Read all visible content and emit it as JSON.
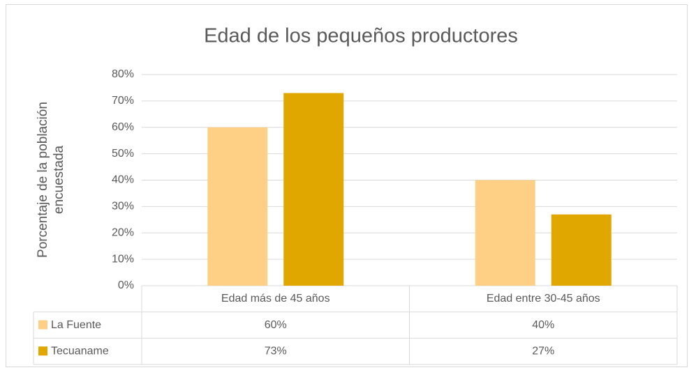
{
  "chart_data": {
    "type": "bar",
    "title": "Edad de los pequeños productores",
    "y_label": "Porcentaje de la población encuestada",
    "categories": [
      "Edad más de 45 años",
      "Edad entre 30-45 años"
    ],
    "series": [
      {
        "name": "La Fuente",
        "color": "#fdd086",
        "values": [
          60,
          40
        ],
        "value_labels": [
          "60%",
          "40%"
        ]
      },
      {
        "name": "Tecuaname",
        "color": "#dfa700",
        "values": [
          73,
          27
        ],
        "value_labels": [
          "73%",
          "27%"
        ]
      }
    ],
    "ylim": [
      0,
      80
    ],
    "yticks": [
      {
        "value": 0,
        "label": "0%"
      },
      {
        "value": 10,
        "label": "10%"
      },
      {
        "value": 20,
        "label": "20%"
      },
      {
        "value": 30,
        "label": "30%"
      },
      {
        "value": 40,
        "label": "40%"
      },
      {
        "value": 50,
        "label": "50%"
      },
      {
        "value": 60,
        "label": "60%"
      },
      {
        "value": 70,
        "label": "70%"
      },
      {
        "value": 80,
        "label": "80%"
      }
    ],
    "grid": true,
    "data_table": true
  }
}
